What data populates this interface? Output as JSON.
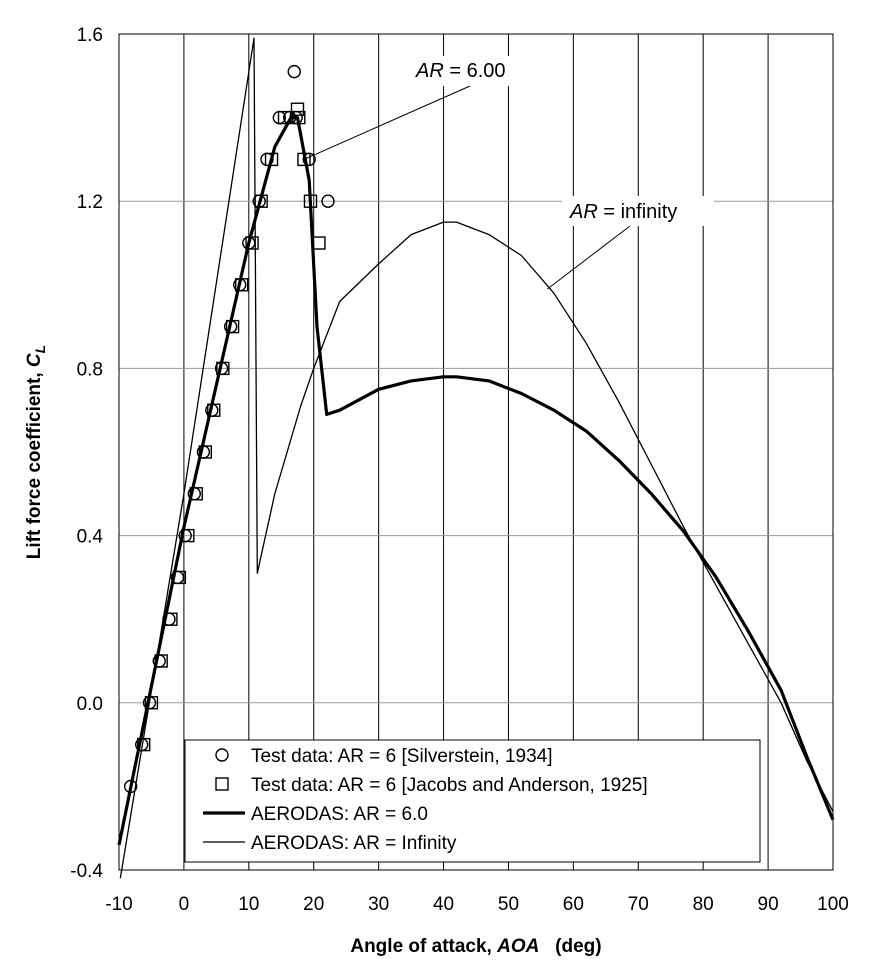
{
  "chart_data": {
    "type": "line",
    "xlabel": {
      "prefix": "Angle of attack, ",
      "italic": "AOA",
      "suffix": "   (deg)"
    },
    "ylabel": {
      "prefix": "Lift force coefficient, ",
      "italic": "C",
      "sub": "L"
    },
    "xlim": [
      -10,
      100
    ],
    "ylim": [
      -0.4,
      1.6
    ],
    "x_ticks": [
      "-10",
      "0",
      "10",
      "20",
      "30",
      "40",
      "50",
      "60",
      "70",
      "80",
      "90",
      "100"
    ],
    "y_ticks": [
      "-0.4",
      "0.0",
      "0.4",
      "0.8",
      "1.2",
      "1.6"
    ],
    "grid": true,
    "legend_position": "bottom-center",
    "annotations": [
      {
        "italic": "AR",
        "rest": " = 6.00",
        "points_to": [
          18.5,
          1.3
        ]
      },
      {
        "italic": "AR",
        "rest": " = infinity",
        "points_to": [
          56,
          0.99
        ]
      }
    ],
    "series": [
      {
        "name": "Test data: AR = 6 [Silverstein, 1934]",
        "marker": "circle",
        "points": [
          [
            -8.2,
            -0.2
          ],
          [
            -6.5,
            -0.1
          ],
          [
            -5.3,
            0.0
          ],
          [
            -3.8,
            0.1
          ],
          [
            -2.3,
            0.2
          ],
          [
            -1.0,
            0.3
          ],
          [
            0.2,
            0.4
          ],
          [
            1.6,
            0.5
          ],
          [
            3.0,
            0.6
          ],
          [
            4.3,
            0.7
          ],
          [
            5.8,
            0.8
          ],
          [
            7.2,
            0.9
          ],
          [
            8.6,
            1.0
          ],
          [
            10.0,
            1.1
          ],
          [
            11.6,
            1.2
          ],
          [
            12.8,
            1.3
          ],
          [
            14.7,
            1.4
          ],
          [
            16.3,
            1.4
          ],
          [
            17.0,
            1.51
          ],
          [
            17.3,
            1.4
          ],
          [
            19.3,
            1.3
          ],
          [
            22.2,
            1.2
          ]
        ]
      },
      {
        "name": "Test data: AR = 6 [Jacobs and Anderson, 1925]",
        "marker": "square",
        "points": [
          [
            -6.2,
            -0.1
          ],
          [
            -5.0,
            0.0
          ],
          [
            -3.5,
            0.1
          ],
          [
            -2.0,
            0.2
          ],
          [
            -0.7,
            0.3
          ],
          [
            0.6,
            0.4
          ],
          [
            1.9,
            0.5
          ],
          [
            3.3,
            0.6
          ],
          [
            4.6,
            0.7
          ],
          [
            6.0,
            0.8
          ],
          [
            7.5,
            0.9
          ],
          [
            8.9,
            1.0
          ],
          [
            10.5,
            1.1
          ],
          [
            11.9,
            1.2
          ],
          [
            13.5,
            1.3
          ],
          [
            15.5,
            1.4
          ],
          [
            17.5,
            1.42
          ],
          [
            17.7,
            1.4
          ],
          [
            18.5,
            1.3
          ],
          [
            19.5,
            1.2
          ],
          [
            20.8,
            1.1
          ]
        ]
      },
      {
        "name": "AERODAS: AR = 6.0",
        "style": "thick",
        "points": [
          [
            -10,
            -0.34
          ],
          [
            0,
            0.42
          ],
          [
            10,
            1.1
          ],
          [
            14,
            1.33
          ],
          [
            16.5,
            1.4
          ],
          [
            17.5,
            1.4
          ],
          [
            19.3,
            1.25
          ],
          [
            20.5,
            0.9
          ],
          [
            22,
            0.69
          ],
          [
            24,
            0.7
          ],
          [
            30,
            0.75
          ],
          [
            35,
            0.77
          ],
          [
            40,
            0.78
          ],
          [
            42,
            0.78
          ],
          [
            47,
            0.77
          ],
          [
            52,
            0.74
          ],
          [
            57,
            0.7
          ],
          [
            62,
            0.65
          ],
          [
            67,
            0.58
          ],
          [
            72,
            0.5
          ],
          [
            77,
            0.41
          ],
          [
            82,
            0.3
          ],
          [
            87,
            0.17
          ],
          [
            92,
            0.03
          ],
          [
            96,
            -0.13
          ],
          [
            100,
            -0.28
          ]
        ]
      },
      {
        "name": "AERODAS: AR = Infinity",
        "style": "thin",
        "points": [
          [
            -9.8,
            -0.42
          ],
          [
            0,
            0.5
          ],
          [
            10.8,
            1.59
          ],
          [
            11.3,
            0.31
          ],
          [
            14,
            0.5
          ],
          [
            18,
            0.71
          ],
          [
            20,
            0.8
          ],
          [
            24,
            0.96
          ],
          [
            30,
            1.05
          ],
          [
            35,
            1.12
          ],
          [
            40,
            1.15
          ],
          [
            42,
            1.15
          ],
          [
            47,
            1.12
          ],
          [
            52,
            1.07
          ],
          [
            57,
            0.98
          ],
          [
            62,
            0.86
          ],
          [
            67,
            0.72
          ],
          [
            72,
            0.57
          ],
          [
            77,
            0.42
          ],
          [
            82,
            0.28
          ],
          [
            87,
            0.14
          ],
          [
            92,
            0.0
          ],
          [
            96,
            -0.14
          ],
          [
            100,
            -0.26
          ]
        ]
      }
    ]
  }
}
